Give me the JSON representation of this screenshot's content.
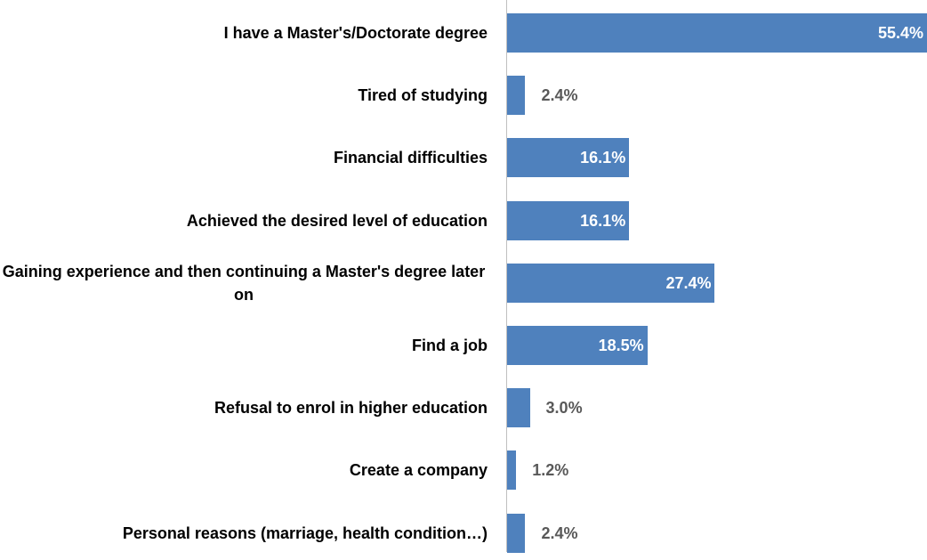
{
  "chart_data": {
    "type": "bar",
    "orientation": "horizontal",
    "categories": [
      "I have a Master's/Doctorate degree",
      "Tired of studying",
      "Financial difficulties",
      "Achieved the desired level of education",
      "Gaining experience and then continuing a Master's degree later on",
      "Find a job",
      "Refusal to enrol in higher education",
      "Create a company",
      "Personal reasons (marriage, health condition…)"
    ],
    "values": [
      55.4,
      2.4,
      16.1,
      16.1,
      27.4,
      18.5,
      3.0,
      1.2,
      2.4
    ],
    "value_labels": [
      "55.4%",
      "2.4%",
      "16.1%",
      "16.1%",
      "27.4%",
      "18.5%",
      "3.0%",
      "1.2%",
      "2.4%"
    ],
    "color": "#4f81bd"
  }
}
